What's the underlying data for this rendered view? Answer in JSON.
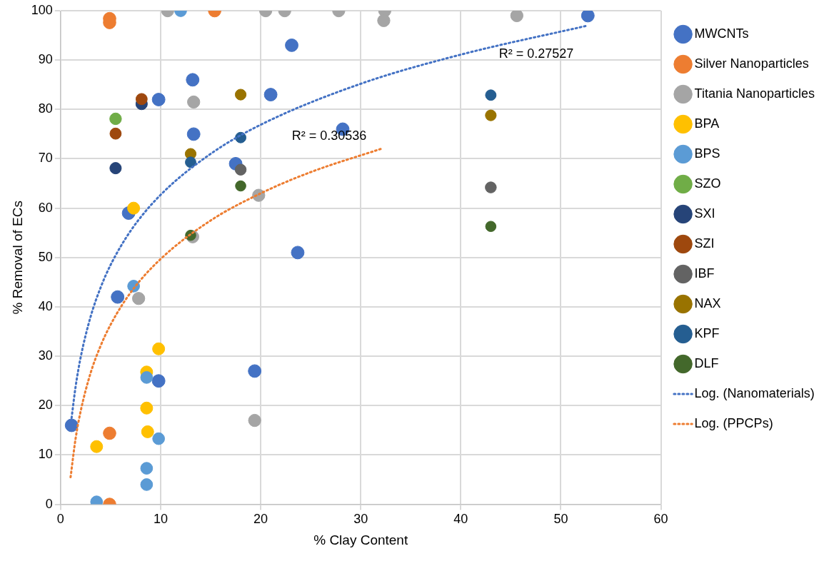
{
  "chart_data": {
    "type": "scatter",
    "xlabel": "% Clay Content",
    "ylabel": "% Removal of ECs",
    "xlim": [
      0,
      60
    ],
    "xticks": [
      0,
      10,
      20,
      30,
      40,
      50,
      60
    ],
    "ylim": [
      0,
      100
    ],
    "yticks": [
      0,
      10,
      20,
      30,
      40,
      50,
      60,
      70,
      80,
      90,
      100
    ],
    "grid": true,
    "legend": "right",
    "marker": "circle",
    "series": [
      {
        "name": "MWCNTs",
        "color": "#4472c4",
        "x": [
          1.1,
          5.7,
          6.8,
          9.8,
          9.8,
          13.2,
          13.3,
          17.5,
          19.4,
          21,
          23.1,
          23.7,
          28.2,
          52.7
        ],
        "values": [
          16,
          42,
          59,
          82,
          25,
          86,
          75,
          69,
          27,
          83,
          93,
          51,
          76,
          99
        ]
      },
      {
        "name": "Silver Nanoparticles",
        "color": "#ed7d31",
        "x": [
          4.9,
          4.9,
          15.4,
          4.9,
          4.9
        ],
        "values": [
          98.4,
          97.6,
          100,
          14.4,
          0
        ]
      },
      {
        "name": "Titania Nanoparticles",
        "color": "#a5a5a5",
        "x": [
          10.7,
          20.5,
          22.4,
          27.8,
          32.4,
          32.3,
          45.6,
          13.3,
          19.8,
          7.8,
          19.4,
          13.2
        ],
        "values": [
          100,
          100,
          100,
          100,
          100,
          98,
          99,
          81.5,
          62.6,
          41.7,
          17,
          54.2
        ]
      },
      {
        "name": "BPA",
        "color": "#ffc000",
        "x": [
          7.3,
          9.8,
          8.6,
          8.6,
          8.7,
          3.6
        ],
        "values": [
          60,
          31.5,
          26.8,
          19.5,
          14.7,
          11.7
        ]
      },
      {
        "name": "BPS",
        "color": "#5b9bd5",
        "x": [
          12,
          7.3,
          8.6,
          9.8,
          8.6,
          8.6,
          3.6
        ],
        "values": [
          100,
          44.2,
          25.7,
          13.3,
          7.3,
          4,
          0.5
        ]
      },
      {
        "name": "SZO",
        "color": "#70ad47",
        "x": [
          5.5
        ],
        "values": [
          78.1
        ]
      },
      {
        "name": "SXI",
        "color": "#264478",
        "x": [
          5.5,
          8.1
        ],
        "values": [
          68.1,
          81.1
        ]
      },
      {
        "name": "SZI",
        "color": "#9e480e",
        "x": [
          5.5,
          8.1
        ],
        "values": [
          75.1,
          82.1
        ]
      },
      {
        "name": "IBF",
        "color": "#636363",
        "x": [
          18,
          43
        ],
        "values": [
          67.8,
          64.2
        ]
      },
      {
        "name": "NAX",
        "color": "#997300",
        "x": [
          18,
          13,
          43
        ],
        "values": [
          83,
          71,
          78.8
        ]
      },
      {
        "name": "KPF",
        "color": "#255e91",
        "x": [
          18,
          13,
          43
        ],
        "values": [
          74.3,
          69.3,
          82.9
        ]
      },
      {
        "name": "DLF",
        "color": "#43682b",
        "x": [
          18,
          13,
          43
        ],
        "values": [
          64.5,
          54.5,
          56.3
        ]
      },
      {
        "name": "Log. (Nanomaterials)",
        "type": "line",
        "line_style": "dotted",
        "marker": "none",
        "color": "#4472c4",
        "x": [
          1.1,
          1.5,
          2,
          3,
          4,
          5,
          7,
          10,
          15,
          20,
          30,
          40,
          52.7
        ],
        "values": [
          17.5,
          23.8,
          29.7,
          38,
          43.9,
          48.5,
          55.4,
          62.7,
          71,
          76.9,
          85.2,
          91.1,
          97
        ]
      },
      {
        "name": "Log. (PPCPs)",
        "type": "line",
        "line_style": "dotted",
        "marker": "none",
        "color": "#ed7d31",
        "x": [
          1,
          1.5,
          2,
          3,
          4,
          5,
          7,
          10,
          15,
          20,
          25,
          32
        ],
        "values": [
          5.5,
          13.3,
          18.8,
          26.6,
          32.1,
          36.4,
          42.9,
          49.7,
          57.5,
          63,
          67.3,
          72
        ]
      }
    ],
    "annotations": [
      "R² = 0.27527",
      "R² = 0.30536"
    ]
  }
}
